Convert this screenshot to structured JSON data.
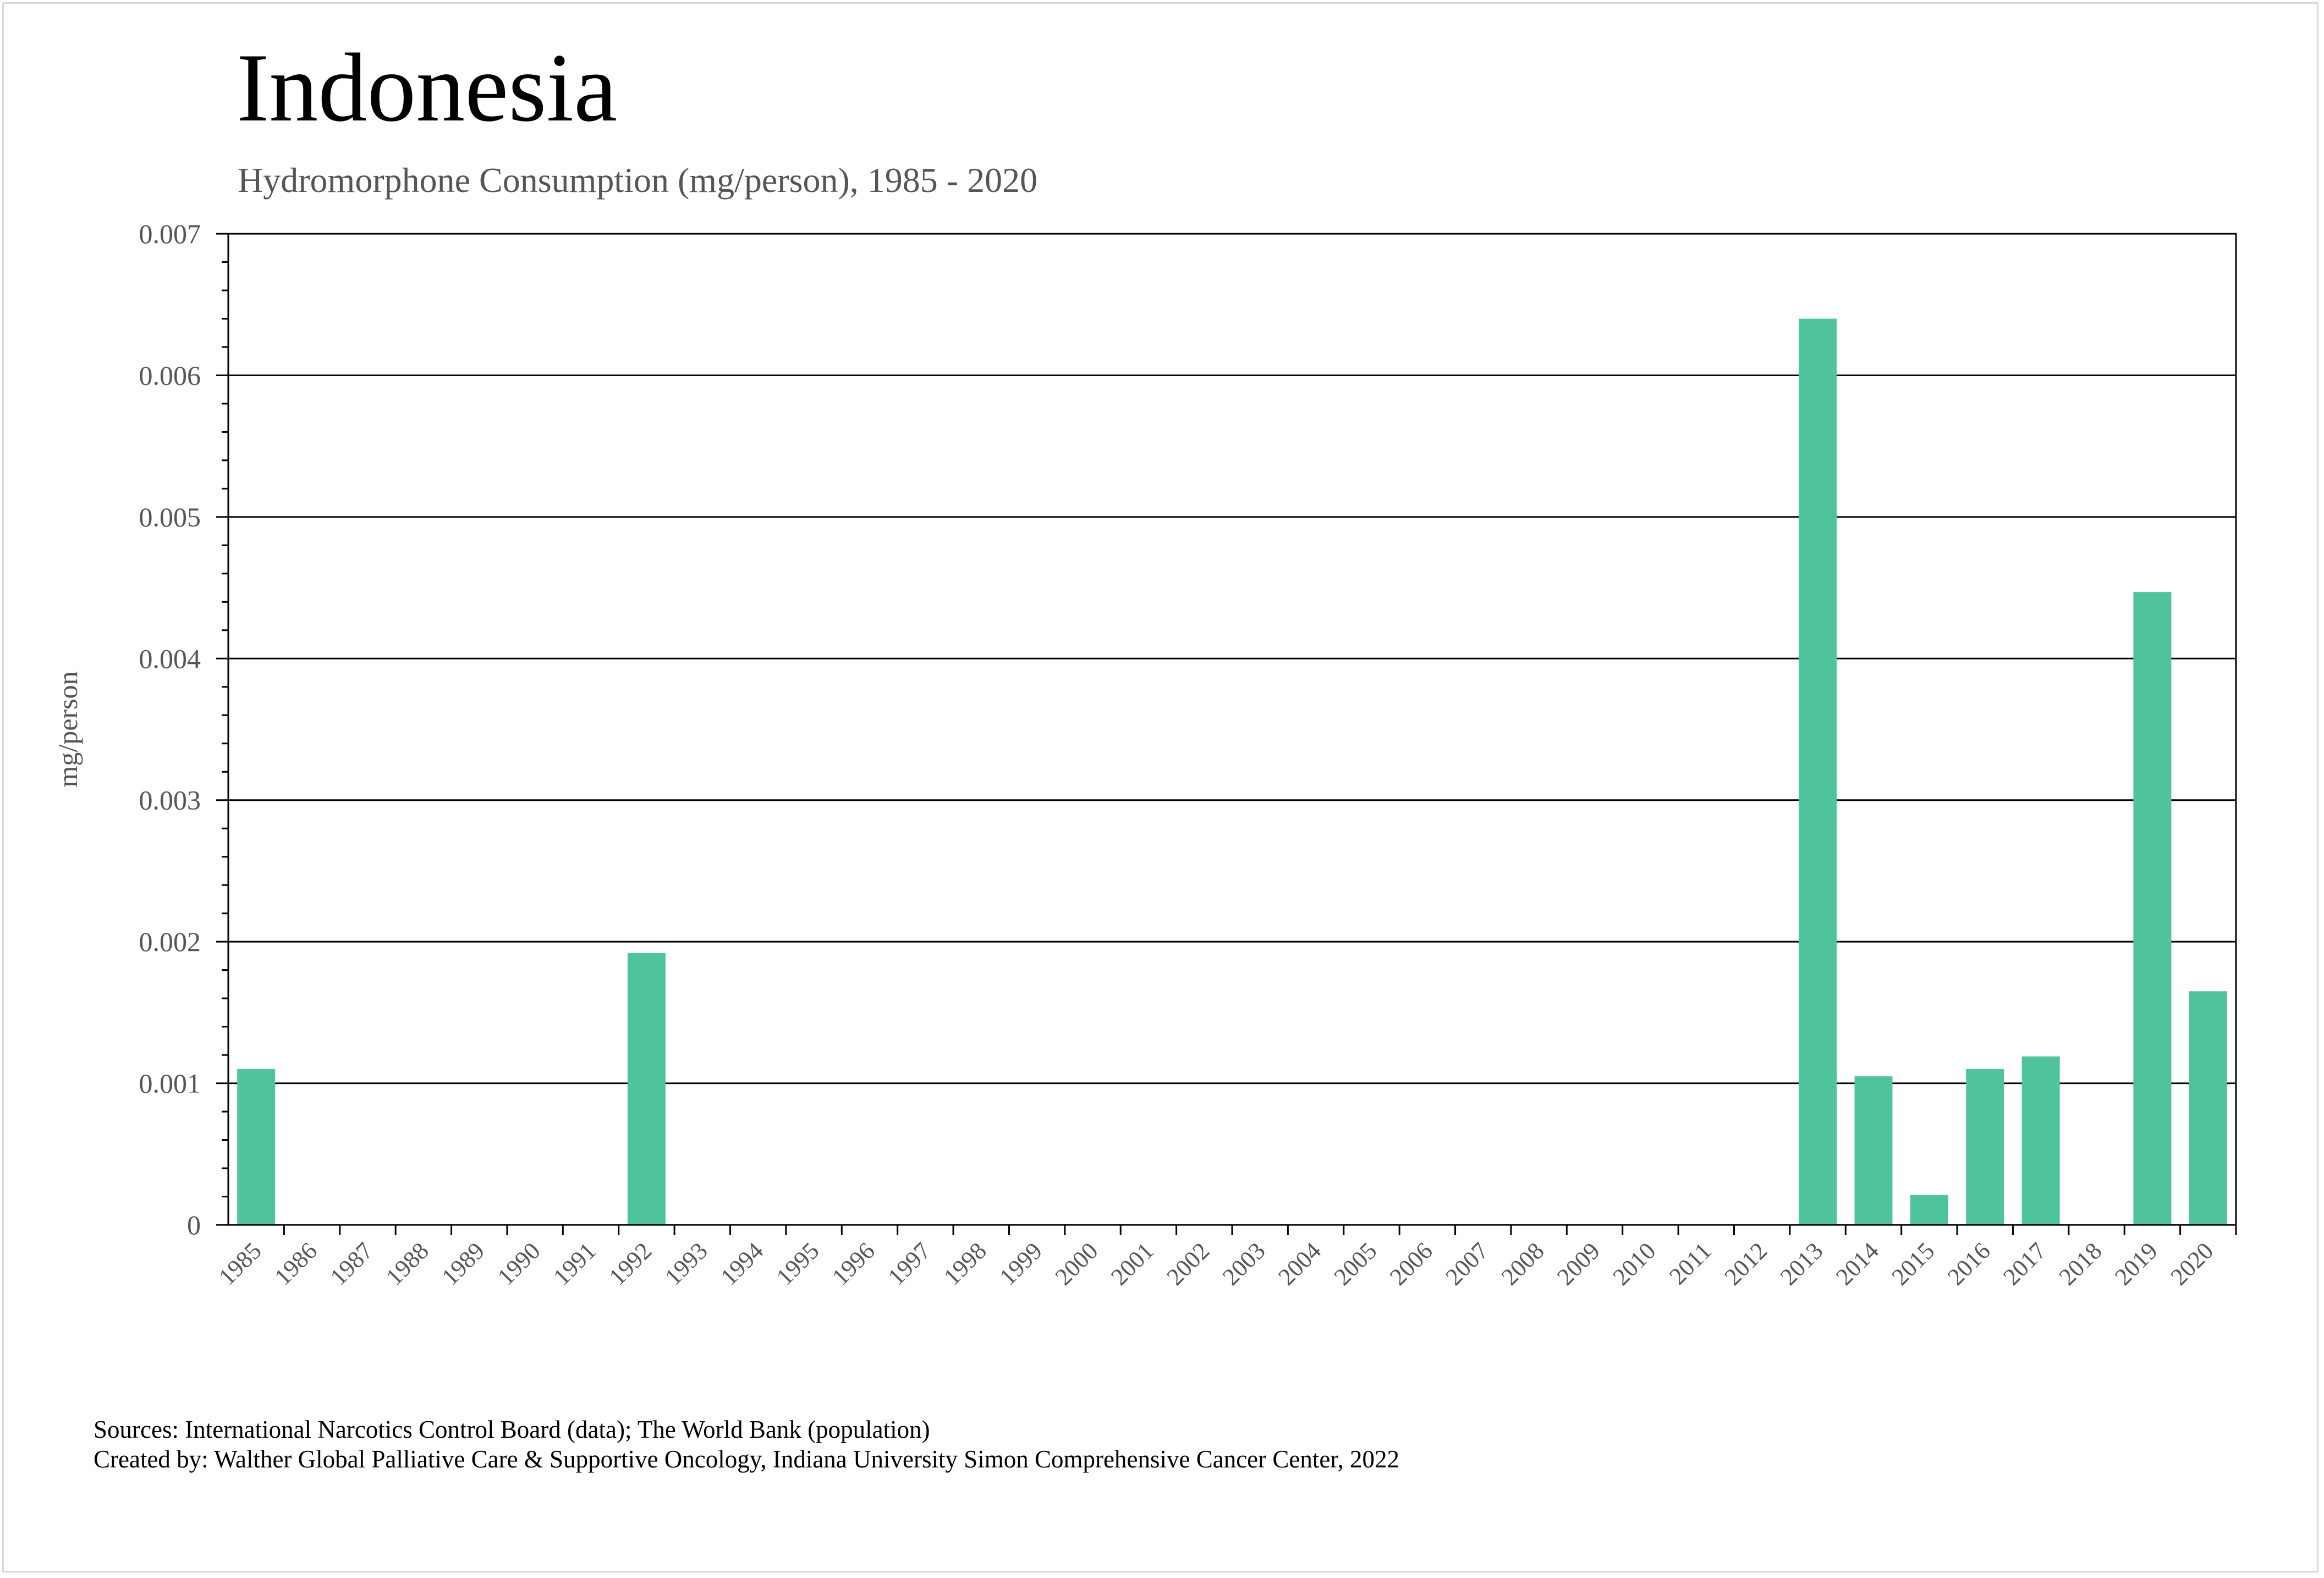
{
  "header": {
    "title": "Indonesia",
    "subtitle": "Hydromorphone Consumption (mg/person), 1985 - 2020"
  },
  "footer": {
    "sources": "Sources: International Narcotics Control Board (data); The World Bank (population)",
    "created_by": "Created by: Walther Global Palliative Care & Supportive Oncology, Indiana University Simon Comprehensive Cancer Center, 2022"
  },
  "colors": {
    "bar": "#4fc49b",
    "gridline": "#000000",
    "axis_text": "#555555"
  },
  "chart_data": {
    "type": "bar",
    "title": "Indonesia",
    "subtitle": "Hydromorphone Consumption (mg/person), 1985 - 2020",
    "xlabel": "",
    "ylabel": "mg/person",
    "ylim": [
      0,
      0.007
    ],
    "yticks": [
      "0",
      "0.001",
      "0.002",
      "0.003",
      "0.004",
      "0.005",
      "0.006",
      "0.007"
    ],
    "grid": true,
    "categories": [
      "1985",
      "1986",
      "1987",
      "1988",
      "1989",
      "1990",
      "1991",
      "1992",
      "1993",
      "1994",
      "1995",
      "1996",
      "1997",
      "1998",
      "1999",
      "2000",
      "2001",
      "2002",
      "2003",
      "2004",
      "2005",
      "2006",
      "2007",
      "2008",
      "2009",
      "2010",
      "2011",
      "2012",
      "2013",
      "2014",
      "2015",
      "2016",
      "2017",
      "2018",
      "2019",
      "2020"
    ],
    "values": [
      0.0011,
      0,
      0,
      0,
      0,
      0,
      0,
      0.00192,
      0,
      0,
      0,
      0,
      0,
      0,
      0,
      0,
      0,
      0,
      0,
      0,
      0,
      0,
      0,
      0,
      0,
      0,
      0,
      0,
      0.0064,
      0.00105,
      0.00021,
      0.0011,
      0.00119,
      0,
      0.00447,
      0.00165
    ]
  }
}
